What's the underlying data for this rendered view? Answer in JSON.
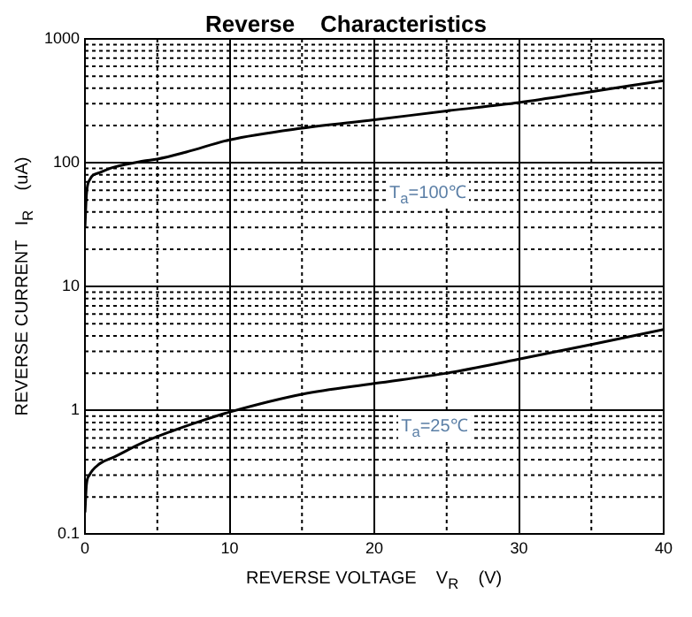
{
  "chart_data": {
    "type": "line",
    "title": "Reverse    Characteristics",
    "xlabel": "REVERSE VOLTAGE    V$_{R}$    (V)",
    "ylabel": "REVERSE CURRENT   I$_{R}$    (uA)",
    "log": "y",
    "grid": true,
    "legend": false,
    "marker": "none",
    "line_style": "solid",
    "xlim": [
      0,
      40
    ],
    "xticks": [
      0,
      {
        "value": 5,
        "label": null
      },
      10,
      {
        "value": 15,
        "label": null
      },
      20,
      {
        "value": 25,
        "label": null
      },
      30,
      {
        "value": 35,
        "label": null
      },
      40
    ],
    "ylim": [
      0.1,
      1000
    ],
    "yticks": [
      0.1,
      {
        "value": 0.2,
        "label": null
      },
      {
        "value": 0.3,
        "label": null
      },
      {
        "value": 0.4,
        "label": null
      },
      {
        "value": 0.5,
        "label": null
      },
      {
        "value": 0.6,
        "label": null
      },
      {
        "value": 0.7,
        "label": null
      },
      {
        "value": 0.8,
        "label": null
      },
      {
        "value": 0.9,
        "label": null
      },
      1,
      {
        "value": 2,
        "label": null
      },
      {
        "value": 3,
        "label": null
      },
      {
        "value": 4,
        "label": null
      },
      {
        "value": 5,
        "label": null
      },
      {
        "value": 6,
        "label": null
      },
      {
        "value": 7,
        "label": null
      },
      {
        "value": 8,
        "label": null
      },
      {
        "value": 9,
        "label": null
      },
      10,
      {
        "value": 20,
        "label": null
      },
      {
        "value": 30,
        "label": null
      },
      {
        "value": 40,
        "label": null
      },
      {
        "value": 50,
        "label": null
      },
      {
        "value": 60,
        "label": null
      },
      {
        "value": 70,
        "label": null
      },
      {
        "value": 80,
        "label": null
      },
      {
        "value": 90,
        "label": null
      },
      100,
      {
        "value": 200,
        "label": null
      },
      {
        "value": 300,
        "label": null
      },
      {
        "value": 400,
        "label": null
      },
      {
        "value": 500,
        "label": null
      },
      {
        "value": 600,
        "label": null
      },
      {
        "value": 700,
        "label": null
      },
      {
        "value": 800,
        "label": null
      },
      {
        "value": 900,
        "label": null
      },
      1000
    ],
    "series": [
      {
        "color": "#000000",
        "x": [
          0,
          0.1,
          0.3,
          1,
          2,
          4,
          5,
          7,
          10,
          15,
          20,
          25,
          30,
          35,
          40
        ],
        "values": [
          30,
          55,
          72,
          83,
          92,
          103,
          107,
          122,
          153,
          190,
          222,
          262,
          306,
          375,
          460
        ]
      },
      {
        "color": "#000000",
        "x": [
          0,
          0.1,
          0.3,
          1,
          2,
          4,
          6,
          8,
          10,
          15,
          20,
          25,
          30,
          35,
          40
        ],
        "values": [
          0.15,
          0.25,
          0.3,
          0.37,
          0.42,
          0.55,
          0.68,
          0.82,
          0.97,
          1.35,
          1.65,
          2.0,
          2.6,
          3.4,
          4.5
        ]
      }
    ],
    "annotations": [
      "T$_{a}$=100℃",
      "T$_{a}$=25℃"
    ]
  }
}
